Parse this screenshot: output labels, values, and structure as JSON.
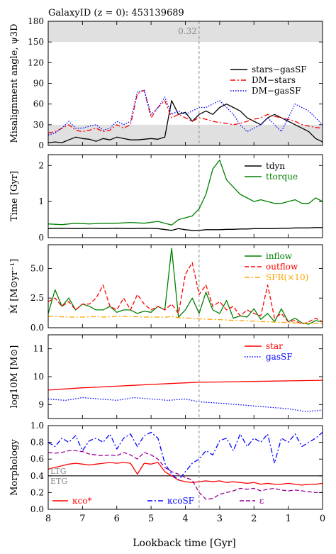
{
  "figure": {
    "header": "GalaxyID (z = 0): 453139689",
    "xlabel": "Lookback time [Gyr]",
    "x_ticks": [
      "8",
      "7",
      "6",
      "5",
      "4",
      "3",
      "2",
      "1",
      "0"
    ],
    "vline_x": 3.6
  },
  "chart_data": [
    {
      "type": "line",
      "ylabel": "Misalignment angle, ψ3D",
      "ylim": [
        0,
        180
      ],
      "y_ticks": [
        0,
        30,
        60,
        90,
        120,
        150,
        180
      ],
      "annotation": "0.32",
      "shaded_bands": [
        [
          150,
          180
        ],
        [
          0,
          30
        ]
      ],
      "legend_placement": "right",
      "x": [
        8.0,
        7.8,
        7.6,
        7.4,
        7.2,
        7.0,
        6.8,
        6.6,
        6.4,
        6.2,
        6.0,
        5.8,
        5.6,
        5.4,
        5.2,
        5.0,
        4.8,
        4.6,
        4.4,
        4.2,
        4.0,
        3.8,
        3.6,
        3.4,
        3.2,
        3.0,
        2.8,
        2.6,
        2.4,
        2.2,
        2.0,
        1.8,
        1.6,
        1.4,
        1.2,
        1.0,
        0.8,
        0.6,
        0.4,
        0.2,
        0.0
      ],
      "series": [
        {
          "name": "stars−gasSF",
          "color": "#000000",
          "dash": "solid",
          "values": [
            4,
            5,
            4,
            8,
            12,
            10,
            9,
            6,
            10,
            8,
            12,
            10,
            8,
            8,
            9,
            10,
            9,
            12,
            65,
            45,
            48,
            35,
            45,
            50,
            45,
            55,
            60,
            55,
            50,
            40,
            35,
            30,
            40,
            45,
            40,
            35,
            30,
            25,
            20,
            10,
            5
          ]
        },
        {
          "name": "DM−stars",
          "color": "#ff0000",
          "dash": "dashdot",
          "values": [
            18,
            20,
            25,
            30,
            22,
            20,
            22,
            25,
            20,
            22,
            30,
            25,
            30,
            75,
            80,
            40,
            55,
            65,
            40,
            45,
            40,
            35,
            40,
            38,
            35,
            33,
            32,
            30,
            32,
            35,
            38,
            40,
            45,
            42,
            40,
            38,
            35,
            30,
            28,
            26,
            25
          ]
        },
        {
          "name": "DM−gasSF",
          "color": "#0000ff",
          "dash": "dotted",
          "values": [
            15,
            18,
            25,
            35,
            25,
            25,
            28,
            30,
            22,
            25,
            35,
            30,
            35,
            78,
            80,
            45,
            55,
            70,
            45,
            50,
            45,
            50,
            55,
            55,
            60,
            65,
            55,
            45,
            30,
            20,
            25,
            30,
            40,
            30,
            20,
            40,
            60,
            55,
            50,
            40,
            30
          ]
        }
      ]
    },
    {
      "type": "line",
      "ylabel": "Time [Gyr]",
      "ylim": [
        0,
        2.3
      ],
      "y_ticks": [
        0,
        1,
        2
      ],
      "legend_placement": "top-right",
      "x": [
        8.0,
        7.6,
        7.2,
        6.8,
        6.4,
        6.0,
        5.6,
        5.2,
        4.8,
        4.4,
        4.2,
        4.0,
        3.8,
        3.6,
        3.4,
        3.2,
        3.0,
        2.8,
        2.6,
        2.4,
        2.2,
        2.0,
        1.8,
        1.6,
        1.4,
        1.2,
        1.0,
        0.8,
        0.6,
        0.4,
        0.2,
        0.0
      ],
      "series": [
        {
          "name": "tdyn",
          "color": "#000000",
          "dash": "solid",
          "values": [
            0.25,
            0.26,
            0.25,
            0.26,
            0.25,
            0.26,
            0.25,
            0.26,
            0.25,
            0.2,
            0.25,
            0.22,
            0.2,
            0.2,
            0.22,
            0.22,
            0.22,
            0.23,
            0.23,
            0.24,
            0.24,
            0.25,
            0.25,
            0.25,
            0.25,
            0.26,
            0.26,
            0.27,
            0.27,
            0.27,
            0.28,
            0.28
          ]
        },
        {
          "name": "ttorque",
          "color": "#008000",
          "dash": "solid",
          "values": [
            0.38,
            0.36,
            0.4,
            0.38,
            0.4,
            0.4,
            0.42,
            0.4,
            0.45,
            0.35,
            0.5,
            0.55,
            0.6,
            0.8,
            1.2,
            1.9,
            2.15,
            1.6,
            1.4,
            1.2,
            1.1,
            1.0,
            1.05,
            1.0,
            0.95,
            0.95,
            1.0,
            1.05,
            0.95,
            0.95,
            1.1,
            1.0
          ]
        }
      ]
    },
    {
      "type": "line",
      "ylabel": "Ṁ [M⊙yr⁻¹]",
      "ylim": [
        0,
        7
      ],
      "y_ticks": [
        0,
        2.5,
        5.0
      ],
      "y_tick_labels": [
        "0.0",
        "2.5",
        "5.0"
      ],
      "legend_placement": "top-right",
      "x": [
        8.0,
        7.8,
        7.6,
        7.4,
        7.2,
        7.0,
        6.8,
        6.6,
        6.4,
        6.2,
        6.0,
        5.8,
        5.6,
        5.4,
        5.2,
        5.0,
        4.8,
        4.6,
        4.4,
        4.2,
        4.0,
        3.8,
        3.6,
        3.4,
        3.2,
        3.0,
        2.8,
        2.6,
        2.4,
        2.2,
        2.0,
        1.8,
        1.6,
        1.4,
        1.2,
        1.0,
        0.8,
        0.6,
        0.4,
        0.2,
        0.0
      ],
      "series": [
        {
          "name": "inflow",
          "color": "#008000",
          "dash": "solid",
          "values": [
            1.2,
            3.2,
            1.8,
            2.5,
            1.5,
            2.0,
            1.8,
            1.5,
            1.5,
            1.8,
            1.3,
            1.5,
            1.5,
            1.2,
            1.4,
            1.3,
            1.8,
            1.5,
            6.7,
            0.9,
            1.5,
            2.5,
            1.2,
            3.0,
            1.5,
            1.2,
            2.3,
            0.8,
            1.0,
            0.9,
            1.6,
            0.7,
            1.2,
            0.5,
            1.6,
            0.5,
            0.8,
            0.4,
            0.3,
            0.6,
            0.5
          ]
        },
        {
          "name": "outflow",
          "color": "#ff0000",
          "dash": "dashed",
          "values": [
            2.2,
            2.5,
            1.8,
            2.2,
            1.5,
            2.0,
            2.0,
            2.5,
            3.6,
            1.8,
            1.5,
            2.5,
            1.5,
            2.8,
            2.0,
            1.5,
            1.8,
            1.5,
            2.0,
            1.2,
            4.5,
            5.5,
            2.8,
            3.6,
            1.8,
            2.2,
            1.5,
            1.8,
            1.0,
            1.5,
            1.2,
            1.0,
            3.6,
            0.8,
            1.2,
            0.5,
            0.6,
            0.3,
            0.5,
            0.8,
            0.5
          ]
        },
        {
          "name": "SFR(×10)",
          "color": "#ffa500",
          "dash": "dashdot",
          "values": [
            0.95,
            0.95,
            0.92,
            0.9,
            0.9,
            0.9,
            0.92,
            0.95,
            0.9,
            0.92,
            0.95,
            0.95,
            0.95,
            0.92,
            0.9,
            0.9,
            0.9,
            0.88,
            0.95,
            0.85,
            0.82,
            0.8,
            0.75,
            0.72,
            0.7,
            0.68,
            0.65,
            0.62,
            0.6,
            0.58,
            0.55,
            0.52,
            0.5,
            0.48,
            0.45,
            0.42,
            0.4,
            0.4,
            0.38,
            0.36,
            0.35
          ]
        }
      ]
    },
    {
      "type": "line",
      "ylabel": "log10M [M⊙]",
      "ylim": [
        8.5,
        11.5
      ],
      "y_ticks": [
        9,
        10,
        11
      ],
      "legend_placement": "top-right",
      "x": [
        8.0,
        7.5,
        7.0,
        6.5,
        6.0,
        5.5,
        5.0,
        4.5,
        4.0,
        3.6,
        3.0,
        2.5,
        2.0,
        1.5,
        1.0,
        0.5,
        0.0
      ],
      "series": [
        {
          "name": "star",
          "color": "#ff0000",
          "dash": "solid",
          "values": [
            9.52,
            9.56,
            9.6,
            9.63,
            9.66,
            9.69,
            9.72,
            9.75,
            9.78,
            9.8,
            9.81,
            9.82,
            9.83,
            9.84,
            9.85,
            9.86,
            9.87
          ]
        },
        {
          "name": "gasSF",
          "color": "#0000ff",
          "dash": "dotted",
          "values": [
            9.2,
            9.15,
            9.25,
            9.2,
            9.15,
            9.25,
            9.2,
            9.15,
            9.2,
            9.1,
            9.05,
            9.0,
            8.95,
            8.9,
            8.85,
            8.75,
            8.8
          ]
        }
      ]
    },
    {
      "type": "line",
      "ylabel": "Morphology",
      "ylim": [
        0,
        1.0
      ],
      "y_ticks": [
        0.0,
        0.2,
        0.4,
        0.6,
        0.8,
        1.0
      ],
      "y_tick_labels": [
        "0.0",
        "0.2",
        "0.4",
        "0.6",
        "0.8",
        "1.0"
      ],
      "threshold": 0.4,
      "threshold_labels": [
        "LTG",
        "ETG"
      ],
      "legend_placement": "bottom",
      "x": [
        8.0,
        7.8,
        7.6,
        7.4,
        7.2,
        7.0,
        6.8,
        6.6,
        6.4,
        6.2,
        6.0,
        5.8,
        5.6,
        5.4,
        5.2,
        5.0,
        4.8,
        4.6,
        4.4,
        4.2,
        4.0,
        3.8,
        3.6,
        3.4,
        3.2,
        3.0,
        2.8,
        2.6,
        2.4,
        2.2,
        2.0,
        1.8,
        1.6,
        1.4,
        1.2,
        1.0,
        0.8,
        0.6,
        0.4,
        0.2,
        0.0
      ],
      "series": [
        {
          "name": "κco*",
          "color": "#ff0000",
          "dash": "solid",
          "values": [
            0.48,
            0.5,
            0.52,
            0.54,
            0.55,
            0.54,
            0.53,
            0.54,
            0.55,
            0.56,
            0.55,
            0.56,
            0.55,
            0.42,
            0.55,
            0.54,
            0.56,
            0.45,
            0.4,
            0.35,
            0.33,
            0.32,
            0.33,
            0.34,
            0.33,
            0.34,
            0.32,
            0.33,
            0.32,
            0.31,
            0.32,
            0.3,
            0.31,
            0.3,
            0.3,
            0.31,
            0.3,
            0.29,
            0.3,
            0.3,
            0.31
          ]
        },
        {
          "name": "κcoSF",
          "color": "#0000ff",
          "dash": "dashdot",
          "values": [
            0.8,
            0.75,
            0.85,
            0.8,
            0.88,
            0.7,
            0.82,
            0.85,
            0.8,
            0.9,
            0.72,
            0.85,
            0.9,
            0.75,
            0.88,
            0.92,
            0.85,
            0.55,
            0.42,
            0.35,
            0.45,
            0.55,
            0.6,
            0.7,
            0.65,
            0.82,
            0.85,
            0.7,
            0.9,
            0.75,
            0.85,
            0.8,
            0.9,
            0.55,
            0.85,
            0.8,
            0.9,
            0.75,
            0.8,
            0.85,
            0.92
          ]
        },
        {
          "name": "ε",
          "color": "#990099",
          "dash": "dashed",
          "values": [
            0.68,
            0.67,
            0.68,
            0.7,
            0.7,
            0.69,
            0.66,
            0.65,
            0.64,
            0.65,
            0.64,
            0.68,
            0.65,
            0.6,
            0.68,
            0.65,
            0.6,
            0.5,
            0.45,
            0.42,
            0.38,
            0.35,
            0.2,
            0.12,
            0.13,
            0.18,
            0.2,
            0.22,
            0.25,
            0.24,
            0.25,
            0.22,
            0.24,
            0.25,
            0.23,
            0.22,
            0.23,
            0.22,
            0.21,
            0.2,
            0.2
          ]
        }
      ]
    }
  ]
}
